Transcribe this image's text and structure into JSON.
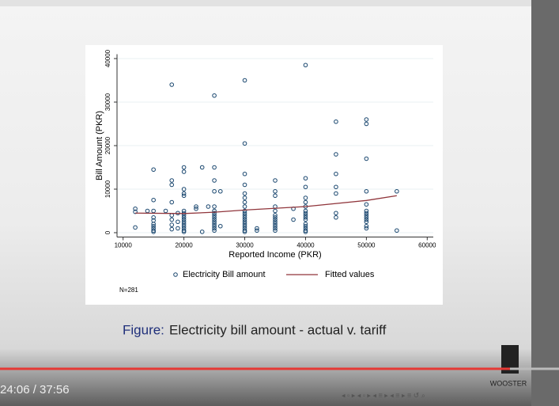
{
  "chart_data": {
    "type": "scatter",
    "x_label": "Reported Income (PKR)",
    "y_label": "Bill Amount (PKR)",
    "xlim": [
      9000,
      61000
    ],
    "ylim": [
      -1000,
      41000
    ],
    "xticks": [
      10000,
      20000,
      30000,
      40000,
      50000,
      60000
    ],
    "yticks": [
      0,
      10000,
      20000,
      30000,
      40000
    ],
    "grid": true,
    "note": "N=281",
    "series": [
      {
        "name": "Electricity Bill amount",
        "type": "scatter",
        "color": "#1a476f",
        "x": [
          12000,
          12000,
          12000,
          14000,
          15000,
          15000,
          15000,
          15000,
          15000,
          15000,
          15000,
          15000,
          15000,
          15000,
          17000,
          18000,
          18000,
          18000,
          18000,
          18000,
          18000,
          18000,
          18000,
          19000,
          19000,
          19000,
          20000,
          20000,
          20000,
          20000,
          20000,
          20000,
          20000,
          20000,
          20000,
          20000,
          20000,
          20000,
          20000,
          20000,
          20000,
          20000,
          22000,
          22000,
          23000,
          23000,
          24000,
          25000,
          25000,
          25000,
          25000,
          25000,
          25000,
          25000,
          25000,
          25000,
          25000,
          25000,
          25000,
          25000,
          25000,
          25000,
          26000,
          26000,
          30000,
          30000,
          30000,
          30000,
          30000,
          30000,
          30000,
          30000,
          30000,
          30000,
          30000,
          30000,
          30000,
          30000,
          30000,
          30000,
          30000,
          30000,
          30000,
          32000,
          32000,
          35000,
          35000,
          35000,
          35000,
          35000,
          35000,
          35000,
          35000,
          35000,
          35000,
          35000,
          35000,
          35000,
          38000,
          38000,
          40000,
          40000,
          40000,
          40000,
          40000,
          40000,
          40000,
          40000,
          40000,
          40000,
          40000,
          40000,
          40000,
          40000,
          40000,
          40000,
          45000,
          45000,
          45000,
          45000,
          45000,
          45000,
          45000,
          50000,
          50000,
          50000,
          50000,
          50000,
          50000,
          50000,
          50000,
          50000,
          50000,
          50000,
          50000,
          50000,
          55000,
          55000
        ],
        "values": [
          5500,
          4800,
          1200,
          5000,
          14500,
          7500,
          5000,
          3500,
          2800,
          2000,
          1500,
          1000,
          500,
          200,
          5000,
          34000,
          12000,
          11000,
          7000,
          4000,
          3000,
          1800,
          800,
          4500,
          2500,
          1000,
          15000,
          14000,
          10000,
          9000,
          8500,
          5000,
          4500,
          4000,
          3500,
          3000,
          2500,
          2000,
          1500,
          1000,
          500,
          200,
          6000,
          5500,
          15000,
          200,
          6000,
          31500,
          15000,
          12000,
          9500,
          6000,
          5000,
          4500,
          4000,
          3500,
          3000,
          2500,
          2000,
          1500,
          1000,
          500,
          9500,
          1500,
          35000,
          20500,
          13500,
          11000,
          9000,
          8000,
          7000,
          6000,
          5000,
          4500,
          4000,
          3500,
          3000,
          2500,
          2000,
          1500,
          1000,
          500,
          200,
          1000,
          500,
          12000,
          9500,
          8500,
          6000,
          5000,
          4000,
          3500,
          3000,
          2500,
          2000,
          1500,
          1000,
          500,
          5500,
          3000,
          38500,
          12500,
          10500,
          8000,
          7000,
          6000,
          5000,
          4500,
          4000,
          3500,
          3000,
          2000,
          1500,
          1000,
          500,
          200,
          25500,
          18000,
          13500,
          10500,
          9000,
          4500,
          3500,
          26000,
          25000,
          17000,
          9500,
          6500,
          5000,
          4500,
          4000,
          3500,
          3000,
          2500,
          1500,
          1000,
          9500,
          500
        ]
      },
      {
        "name": "Fitted values",
        "type": "line",
        "color": "#90353b",
        "x": [
          12000,
          20000,
          25000,
          30000,
          40000,
          50000,
          55000
        ],
        "values": [
          4500,
          4400,
          4700,
          5200,
          6000,
          7400,
          8500
        ]
      }
    ]
  },
  "caption": {
    "label": "Figure:",
    "text": "Electricity bill amount - actual v. tariff"
  },
  "player": {
    "time": "24:06 / 37:56"
  },
  "logo": "WOOSTER"
}
